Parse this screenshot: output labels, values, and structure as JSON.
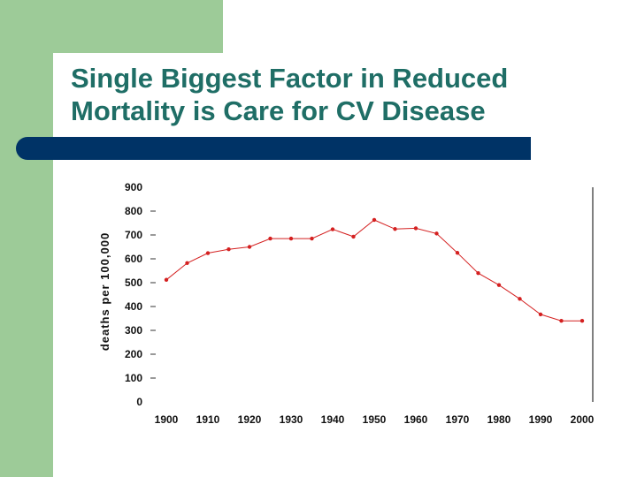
{
  "slide": {
    "title_line1": "Single Biggest Factor in Reduced",
    "title_line2": "Mortality is Care for CV Disease",
    "colors": {
      "title": "#1f6e66",
      "bar": "#003366",
      "accent_green": "#9dcb98",
      "series": "#d42020"
    }
  },
  "chart_data": {
    "type": "line",
    "title": "",
    "xlabel": "",
    "ylabel": "deaths per 100,000",
    "xlim": [
      1900,
      2000
    ],
    "ylim": [
      0,
      900
    ],
    "x_ticks": [
      "1900",
      "1910",
      "1920",
      "1930",
      "1940",
      "1950",
      "1960",
      "1970",
      "1980",
      "1990",
      "2000"
    ],
    "y_ticks": [
      "0",
      "100",
      "200",
      "300",
      "400",
      "500",
      "600",
      "700",
      "800",
      "900"
    ],
    "grid": false,
    "legend": "none",
    "series": [
      {
        "x": [
          1900,
          1905,
          1910,
          1915,
          1920,
          1925,
          1930,
          1935,
          1940,
          1945,
          1950,
          1955,
          1960,
          1965,
          1970,
          1975,
          1980,
          1985,
          1990,
          1995,
          2000
        ],
        "y": [
          512,
          582,
          624,
          640,
          650,
          685,
          685,
          685,
          724,
          693,
          763,
          725,
          728,
          706,
          625,
          540,
          490,
          432,
          367,
          340,
          340
        ]
      }
    ]
  }
}
